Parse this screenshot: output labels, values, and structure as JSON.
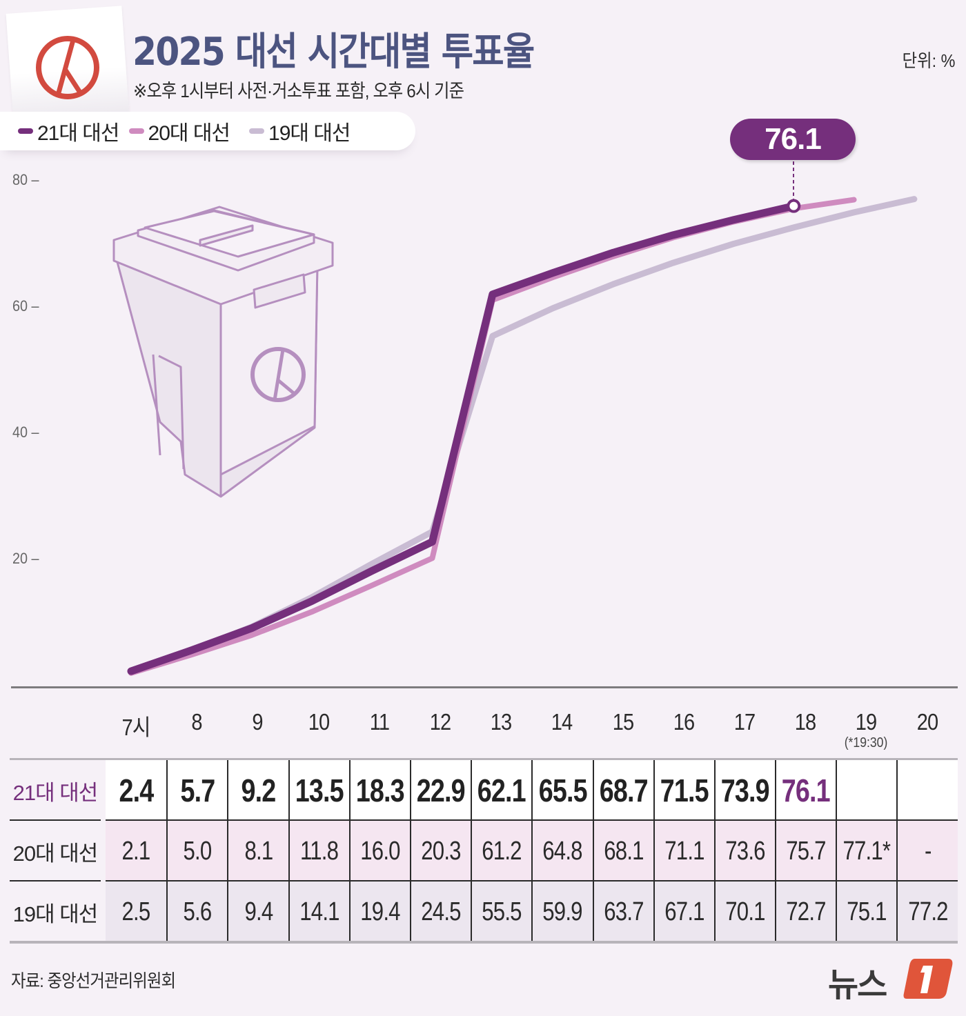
{
  "header": {
    "title": "2025 대선 시간대별 투표율",
    "subtitle": "※오후 1시부터 사전·거소투표 포함, 오후 6시 기준",
    "unit": "단위: %"
  },
  "legend": [
    {
      "label": "21대 대선",
      "color": "#752f7c"
    },
    {
      "label": "20대 대선",
      "color": "#cf8bbf"
    },
    {
      "label": "19대 대선",
      "color": "#c9bcd3"
    }
  ],
  "callout": {
    "value": "76.1",
    "hour": 18
  },
  "hours": [
    {
      "label": "7시"
    },
    {
      "label": "8"
    },
    {
      "label": "9"
    },
    {
      "label": "10"
    },
    {
      "label": "11"
    },
    {
      "label": "12"
    },
    {
      "label": "13"
    },
    {
      "label": "14"
    },
    {
      "label": "15"
    },
    {
      "label": "16"
    },
    {
      "label": "17"
    },
    {
      "label": "18"
    },
    {
      "label": "19",
      "note": "(*19:30)"
    },
    {
      "label": "20"
    }
  ],
  "table": {
    "rows": [
      {
        "label": "21대 대선",
        "values": [
          "2.4",
          "5.7",
          "9.2",
          "13.5",
          "18.3",
          "22.9",
          "62.1",
          "65.5",
          "68.7",
          "71.5",
          "73.9",
          "76.1",
          "",
          ""
        ]
      },
      {
        "label": "20대 대선",
        "values": [
          "2.1",
          "5.0",
          "8.1",
          "11.8",
          "16.0",
          "20.3",
          "61.2",
          "64.8",
          "68.1",
          "71.1",
          "73.6",
          "75.7",
          "77.1*",
          "-"
        ]
      },
      {
        "label": "19대 대선",
        "values": [
          "2.5",
          "5.6",
          "9.4",
          "14.1",
          "19.4",
          "24.5",
          "55.5",
          "59.9",
          "63.7",
          "67.1",
          "70.1",
          "72.7",
          "75.1",
          "77.2"
        ]
      }
    ]
  },
  "footer": {
    "source": "자료: 중앙선거관리위원회",
    "logo_text": "뉴스",
    "logo_badge": "1",
    "logo_color": "#e0553a"
  },
  "chart_data": {
    "type": "line",
    "title": "2025 대선 시간대별 투표율",
    "subtitle": "※오후 1시부터 사전·거소투표 포함, 오후 6시 기준",
    "xlabel": "",
    "ylabel": "단위: %",
    "x": [
      "7시",
      "8",
      "9",
      "10",
      "11",
      "12",
      "13",
      "14",
      "15",
      "16",
      "17",
      "18",
      "19",
      "20"
    ],
    "ylim": [
      0,
      80
    ],
    "yticks": [
      20,
      40,
      60,
      80
    ],
    "grid": false,
    "legend_position": "top-left",
    "series": [
      {
        "name": "21대 대선",
        "color": "#752f7c",
        "values": [
          2.4,
          5.7,
          9.2,
          13.5,
          18.3,
          22.9,
          62.1,
          65.5,
          68.7,
          71.5,
          73.9,
          76.1,
          null,
          null
        ]
      },
      {
        "name": "20대 대선",
        "color": "#cf8bbf",
        "values": [
          2.1,
          5.0,
          8.1,
          11.8,
          16.0,
          20.3,
          61.2,
          64.8,
          68.1,
          71.1,
          73.6,
          75.7,
          77.1,
          null
        ]
      },
      {
        "name": "19대 대선",
        "color": "#c9bcd3",
        "values": [
          2.5,
          5.6,
          9.4,
          14.1,
          19.4,
          24.5,
          55.5,
          59.9,
          63.7,
          67.1,
          70.1,
          72.7,
          75.1,
          77.2
        ]
      }
    ],
    "annotations": [
      {
        "text": "76.1",
        "x": "18",
        "series": "21대 대선"
      },
      {
        "text": "(*19:30)",
        "x": "19",
        "note": "20대 대선 19시 값은 19:30 기준"
      }
    ]
  }
}
